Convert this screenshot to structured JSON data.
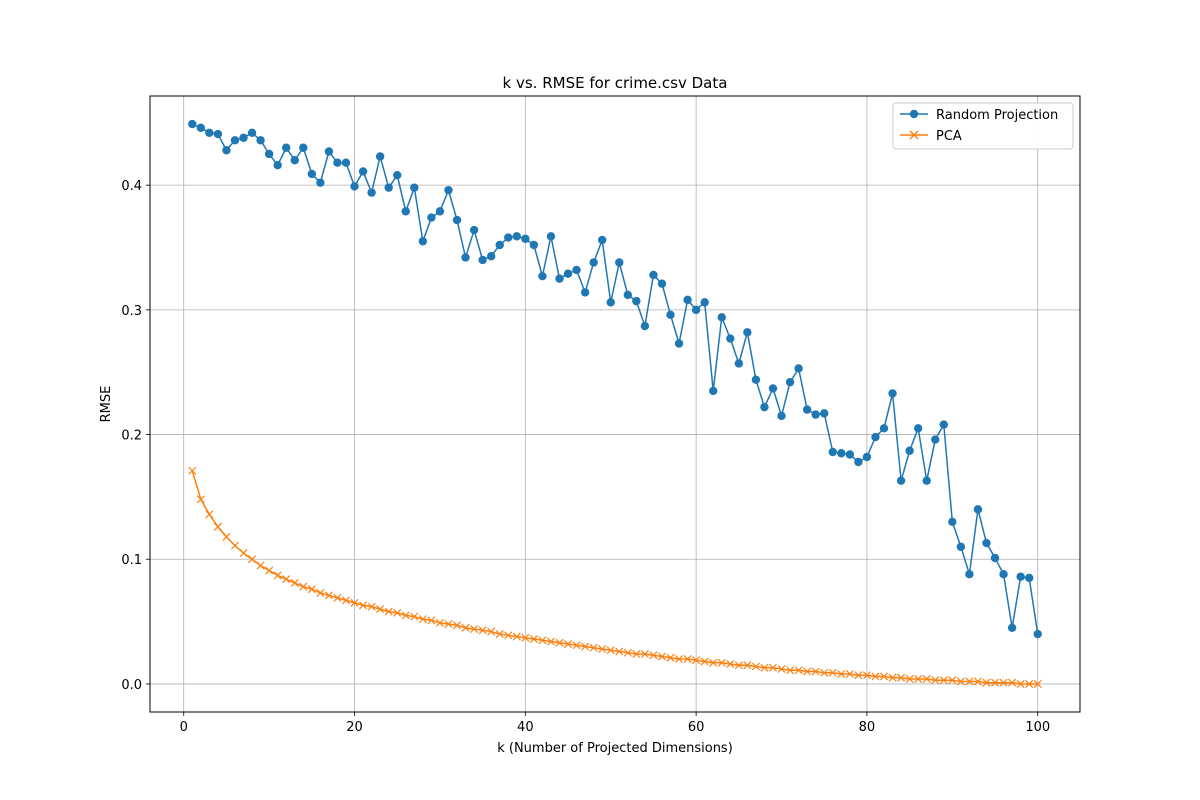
{
  "chart_data": {
    "type": "line",
    "title": "k vs. RMSE for crime.csv Data",
    "xlabel": "k (Number of Projected Dimensions)",
    "ylabel": "RMSE",
    "xlim": [
      -3.95,
      104.95
    ],
    "ylim": [
      -0.0225,
      0.4715
    ],
    "xticks": [
      0,
      20,
      40,
      60,
      80,
      100
    ],
    "yticks": [
      0.0,
      0.1,
      0.2,
      0.3,
      0.4
    ],
    "ytick_labels": [
      "0.0",
      "0.1",
      "0.2",
      "0.3",
      "0.4"
    ],
    "grid": true,
    "legend_position": "top-right",
    "x": [
      1,
      2,
      3,
      4,
      5,
      6,
      7,
      8,
      9,
      10,
      11,
      12,
      13,
      14,
      15,
      16,
      17,
      18,
      19,
      20,
      21,
      22,
      23,
      24,
      25,
      26,
      27,
      28,
      29,
      30,
      31,
      32,
      33,
      34,
      35,
      36,
      37,
      38,
      39,
      40,
      41,
      42,
      43,
      44,
      45,
      46,
      47,
      48,
      49,
      50,
      51,
      52,
      53,
      54,
      55,
      56,
      57,
      58,
      59,
      60,
      61,
      62,
      63,
      64,
      65,
      66,
      67,
      68,
      69,
      70,
      71,
      72,
      73,
      74,
      75,
      76,
      77,
      78,
      79,
      80,
      81,
      82,
      83,
      84,
      85,
      86,
      87,
      88,
      89,
      90,
      91,
      92,
      93,
      94,
      95,
      96,
      97,
      98,
      99,
      100
    ],
    "series": [
      {
        "name": "Random Projection",
        "color": "#1f77b4",
        "marker": "circle",
        "values": [
          0.449,
          0.446,
          0.442,
          0.441,
          0.428,
          0.436,
          0.438,
          0.442,
          0.436,
          0.425,
          0.416,
          0.43,
          0.42,
          0.43,
          0.409,
          0.402,
          0.427,
          0.418,
          0.418,
          0.399,
          0.411,
          0.394,
          0.423,
          0.398,
          0.408,
          0.379,
          0.398,
          0.355,
          0.374,
          0.379,
          0.396,
          0.372,
          0.342,
          0.364,
          0.34,
          0.343,
          0.352,
          0.358,
          0.359,
          0.357,
          0.352,
          0.327,
          0.359,
          0.325,
          0.329,
          0.332,
          0.314,
          0.338,
          0.356,
          0.306,
          0.338,
          0.312,
          0.307,
          0.287,
          0.328,
          0.321,
          0.296,
          0.273,
          0.308,
          0.3,
          0.306,
          0.235,
          0.294,
          0.277,
          0.257,
          0.282,
          0.244,
          0.222,
          0.237,
          0.215,
          0.242,
          0.253,
          0.22,
          0.216,
          0.217,
          0.186,
          0.185,
          0.184,
          0.178,
          0.182,
          0.198,
          0.205,
          0.233,
          0.163,
          0.187,
          0.205,
          0.163,
          0.196,
          0.208,
          0.13,
          0.11,
          0.088,
          0.14,
          0.113,
          0.101,
          0.088,
          0.045,
          0.086,
          0.085,
          0.04
        ]
      },
      {
        "name": "PCA",
        "color": "#ff7f0e",
        "marker": "x",
        "values": [
          0.171,
          0.148,
          0.136,
          0.126,
          0.118,
          0.111,
          0.105,
          0.1,
          0.095,
          0.091,
          0.087,
          0.084,
          0.081,
          0.078,
          0.076,
          0.073,
          0.071,
          0.069,
          0.067,
          0.065,
          0.063,
          0.062,
          0.06,
          0.058,
          0.057,
          0.055,
          0.054,
          0.052,
          0.051,
          0.049,
          0.048,
          0.047,
          0.045,
          0.044,
          0.043,
          0.042,
          0.04,
          0.039,
          0.038,
          0.037,
          0.036,
          0.035,
          0.034,
          0.033,
          0.032,
          0.031,
          0.03,
          0.029,
          0.028,
          0.027,
          0.026,
          0.025,
          0.024,
          0.024,
          0.023,
          0.022,
          0.021,
          0.02,
          0.02,
          0.019,
          0.018,
          0.017,
          0.017,
          0.016,
          0.015,
          0.015,
          0.014,
          0.013,
          0.013,
          0.012,
          0.011,
          0.011,
          0.01,
          0.01,
          0.009,
          0.009,
          0.008,
          0.008,
          0.007,
          0.007,
          0.006,
          0.006,
          0.005,
          0.005,
          0.004,
          0.004,
          0.004,
          0.003,
          0.003,
          0.003,
          0.002,
          0.002,
          0.002,
          0.001,
          0.001,
          0.001,
          0.001,
          0.0,
          0.0,
          0.0
        ]
      }
    ]
  }
}
